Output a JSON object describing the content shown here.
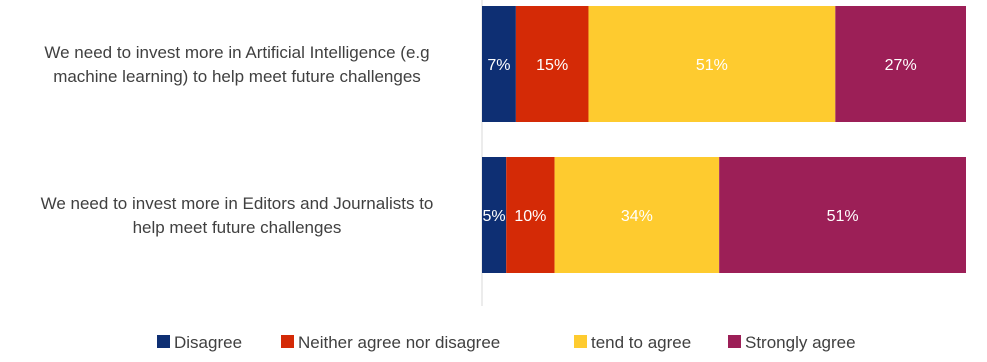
{
  "chart_data": {
    "type": "bar",
    "orientation": "horizontal",
    "stacked": true,
    "categories": [
      [
        "We need to invest more in Artificial Intelligence (e.g",
        "machine learning) to help meet future challenges"
      ],
      [
        "We need to invest more in Editors and Journalists to",
        "help meet future challenges"
      ]
    ],
    "series": [
      {
        "name": "Disagree",
        "color": "#0e2f73",
        "label_color": "#ffffff",
        "values": [
          7,
          5
        ]
      },
      {
        "name": "Neither agree nor disagree",
        "color": "#d42a06",
        "label_color": "#ffffff",
        "values": [
          15,
          10
        ]
      },
      {
        "name": "tend to agree",
        "color": "#fecb2f",
        "label_color": "#ffffff",
        "values": [
          51,
          34
        ]
      },
      {
        "name": "Strongly agree",
        "color": "#9c1f57",
        "label_color": "#ffffff",
        "values": [
          27,
          51
        ]
      }
    ],
    "data_label_suffix": "%",
    "xlim": [
      0,
      100
    ],
    "grid": false,
    "legend_position": "bottom"
  }
}
